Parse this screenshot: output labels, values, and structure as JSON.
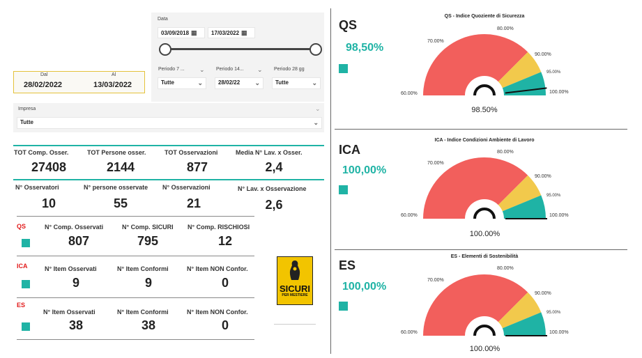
{
  "filters": {
    "data_label": "Data",
    "date_from": "03/09/2018",
    "date_to": "17/03/2022",
    "dal_label": "Dal",
    "al_label": "Al",
    "dal_value": "28/02/2022",
    "al_value": "13/03/2022",
    "periodo7_label": "Periodo 7 ...",
    "periodo7_value": "Tutte",
    "periodo14_label": "Periodo 14...",
    "periodo14_value": "28/02/22",
    "periodo28_label": "Periodo 28 gg",
    "periodo28_value": "Tutte",
    "impresa_label": "Impresa",
    "impresa_value": "Tutte"
  },
  "kpi_row1": [
    {
      "label": "TOT Comp. Osser.",
      "value": "27408"
    },
    {
      "label": "TOT Persone osser.",
      "value": "2144"
    },
    {
      "label": "TOT Osservazioni",
      "value": "877"
    },
    {
      "label": "Media N° Lav. x Osser.",
      "value": "2,4"
    }
  ],
  "kpi_row2": [
    {
      "label": "N° Osservatori",
      "value": "10"
    },
    {
      "label": "N° persone osservate",
      "value": "55"
    },
    {
      "label": "N° Osservazioni",
      "value": "21"
    },
    {
      "label": "N° Lav. x Osservazione",
      "value": "2,6"
    }
  ],
  "qs_section": {
    "tag": "QS",
    "cols": [
      {
        "label": "N° Comp. Osservati",
        "value": "807"
      },
      {
        "label": "N° Comp. SICURI",
        "value": "795"
      },
      {
        "label": "N° Comp. RISCHIOSI",
        "value": "12"
      }
    ]
  },
  "ica_section": {
    "tag": "ICA",
    "cols": [
      {
        "label": "N° Item Osservati",
        "value": "9"
      },
      {
        "label": "N° Item Conformi",
        "value": "9"
      },
      {
        "label": "N° Item NON Confor.",
        "value": "0"
      }
    ]
  },
  "es_section": {
    "tag": "ES",
    "cols": [
      {
        "label": "N° Item Osservati",
        "value": "38"
      },
      {
        "label": "N° Item Conformi",
        "value": "38"
      },
      {
        "label": "N° Item NON Confor.",
        "value": "0"
      }
    ]
  },
  "logo": {
    "line1": "SICURI",
    "line2": "PER MESTIERE"
  },
  "gauges": [
    {
      "code": "QS",
      "pct": "98,50%",
      "title": "QS - Indice Quoziente di Sicurezza",
      "value": 98.5,
      "value_label": "98.50%"
    },
    {
      "code": "ICA",
      "pct": "100,00%",
      "title": "ICA - Indice Condizioni Ambiente di Lavoro",
      "value": 100,
      "value_label": "100.00%"
    },
    {
      "code": "ES",
      "pct": "100,00%",
      "title": "ES - Elementi di Sostenibilità",
      "value": 100,
      "value_label": "100.00%"
    }
  ],
  "gauge_ticks": {
    "t60": "60.00%",
    "t70": "70.00%",
    "t80": "80.00%",
    "t90": "90.00%",
    "t95": "95.00%",
    "t100": "100.00%"
  },
  "gauge_bands": [
    {
      "from": 60,
      "to": 90,
      "color": "#f25f5c"
    },
    {
      "from": 90,
      "to": 95,
      "color": "#f2c94c"
    },
    {
      "from": 95,
      "to": 100,
      "color": "#1fb3a5"
    }
  ],
  "colors": {
    "teal": "#1fb3a5",
    "red": "#e21b1b",
    "logo_yellow": "#f2c400"
  }
}
